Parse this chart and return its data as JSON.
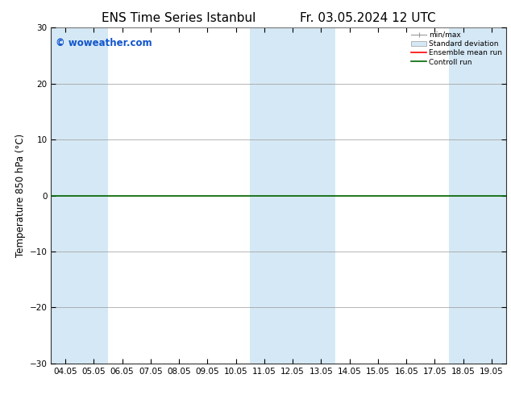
{
  "title_left": "ENS Time Series Istanbul",
  "title_right": "Fr. 03.05.2024 12 UTC",
  "ylabel": "Temperature 850 hPa (°C)",
  "ylim": [
    -30,
    30
  ],
  "yticks": [
    -30,
    -20,
    -10,
    0,
    10,
    20,
    30
  ],
  "xlabels": [
    "04.05",
    "05.05",
    "06.05",
    "07.05",
    "08.05",
    "09.05",
    "10.05",
    "11.05",
    "12.05",
    "13.05",
    "14.05",
    "15.05",
    "16.05",
    "17.05",
    "18.05",
    "19.05"
  ],
  "shaded_bands_start": [
    0,
    1,
    7,
    8,
    9,
    14,
    15
  ],
  "band_color": "#d5e8f5",
  "background_color": "#ffffff",
  "grid_color": "#999999",
  "zero_line_color": "#006600",
  "watermark": "© woweather.com",
  "watermark_color": "#1155cc",
  "legend_items": [
    "min/max",
    "Standard deviation",
    "Ensemble mean run",
    "Controll run"
  ],
  "legend_colors": [
    "#999999",
    "#aabbcc",
    "#ff0000",
    "#006600"
  ],
  "title_fontsize": 11,
  "tick_fontsize": 7.5,
  "ylabel_fontsize": 8.5
}
